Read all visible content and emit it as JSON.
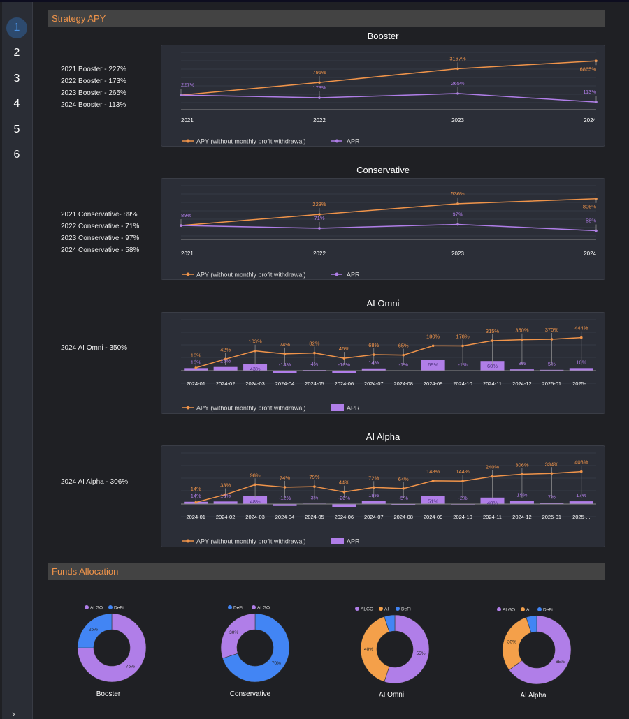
{
  "nav": {
    "items": [
      "1",
      "2",
      "3",
      "4",
      "5",
      "6"
    ],
    "active": 0,
    "expand": "›"
  },
  "sections": {
    "apy": "Strategy APY",
    "funds": "Funds Allocation"
  },
  "colors": {
    "apy": "#f0944a",
    "apr": "#b07ee8",
    "algo": "#b07ee8",
    "defi": "#4285f4",
    "ai": "#f4a04a"
  },
  "legend": {
    "apy": "APY (without monthly profit withdrawal)",
    "apr": "APR"
  },
  "summaries": [
    [
      "2021 Booster - 227%",
      "2022 Booster - 173%",
      "2023 Booster - 265%",
      "2024 Booster - 113%"
    ],
    [
      "2021 Conservative- 89%",
      "2022 Conservative - 71%",
      "2023 Conservative - 97%",
      "2024 Conservative - 58%"
    ],
    [
      "2024 AI Omni - 350%"
    ],
    [
      "2024 AI Alpha - 306%"
    ]
  ],
  "chart_data": [
    {
      "type": "line",
      "title": "Booster",
      "scale": "log",
      "categories": [
        "2021",
        "2022",
        "2023",
        "2024"
      ],
      "series": [
        {
          "name": "APY (without monthly profit withdrawal)",
          "values": [
            227,
            795,
            3167,
            6865
          ]
        },
        {
          "name": "APR",
          "values": [
            227,
            173,
            265,
            113
          ]
        }
      ],
      "legend": "bottom-left"
    },
    {
      "type": "line",
      "title": "Conservative",
      "scale": "log",
      "categories": [
        "2021",
        "2022",
        "2023",
        "2024"
      ],
      "series": [
        {
          "name": "APY (without monthly profit withdrawal)",
          "values": [
            89,
            223,
            536,
            806
          ]
        },
        {
          "name": "APR",
          "values": [
            89,
            71,
            97,
            58
          ]
        }
      ],
      "legend": "bottom-left"
    },
    {
      "type": "bar+line",
      "title": "AI Omni",
      "categories": [
        "2024-01",
        "2024-02",
        "2024-03",
        "2024-04",
        "2024-05",
        "2024-06",
        "2024-07",
        "2024-08",
        "2024-09",
        "2024-10",
        "2024-11",
        "2024-12",
        "2025-01",
        "2025-..."
      ],
      "series": [
        {
          "name": "APY (without monthly profit withdrawal)",
          "type": "line",
          "values": [
            16,
            42,
            103,
            74,
            82,
            46,
            68,
            65,
            180,
            178,
            315,
            350,
            370,
            444
          ]
        },
        {
          "name": "APR",
          "type": "bar",
          "values": [
            16,
            23,
            43,
            -14,
            4,
            -16,
            14,
            -1,
            69,
            -1,
            60,
            8,
            5,
            16
          ]
        }
      ],
      "legend": "bottom-left"
    },
    {
      "type": "bar+line",
      "title": "AI Alpha",
      "categories": [
        "2024-01",
        "2024-02",
        "2024-03",
        "2024-04",
        "2024-05",
        "2024-06",
        "2024-07",
        "2024-08",
        "2024-09",
        "2024-10",
        "2024-11",
        "2024-12",
        "2025-01",
        "2025-..."
      ],
      "series": [
        {
          "name": "APY (without monthly profit withdrawal)",
          "type": "line",
          "values": [
            14,
            33,
            98,
            74,
            79,
            44,
            72,
            64,
            148,
            144,
            240,
            306,
            334,
            408
          ]
        },
        {
          "name": "APR",
          "type": "bar",
          "values": [
            14,
            16,
            48,
            -12,
            3,
            -20,
            18,
            -5,
            51,
            -2,
            40,
            19,
            7,
            17
          ]
        }
      ],
      "legend": "bottom-left"
    },
    {
      "type": "pie",
      "donut": true,
      "title": "Booster",
      "slices": [
        {
          "label": "ALGO",
          "value": 75
        },
        {
          "label": "DeFi",
          "value": 25
        }
      ],
      "legend": "top"
    },
    {
      "type": "pie",
      "donut": true,
      "title": "Conservative",
      "slices": [
        {
          "label": "DeFi",
          "value": 70
        },
        {
          "label": "ALGO",
          "value": 30
        }
      ],
      "legend": "top"
    },
    {
      "type": "pie",
      "donut": true,
      "title": "AI Omni",
      "slices": [
        {
          "label": "ALGO",
          "value": 55
        },
        {
          "label": "AI",
          "value": 40
        },
        {
          "label": "DeFi",
          "value": 5
        }
      ],
      "legend": "top"
    },
    {
      "type": "pie",
      "donut": true,
      "title": "AI Alpha",
      "slices": [
        {
          "label": "ALGO",
          "value": 65
        },
        {
          "label": "AI",
          "value": 30
        },
        {
          "label": "DeFi",
          "value": 5
        }
      ],
      "legend": "top"
    }
  ]
}
